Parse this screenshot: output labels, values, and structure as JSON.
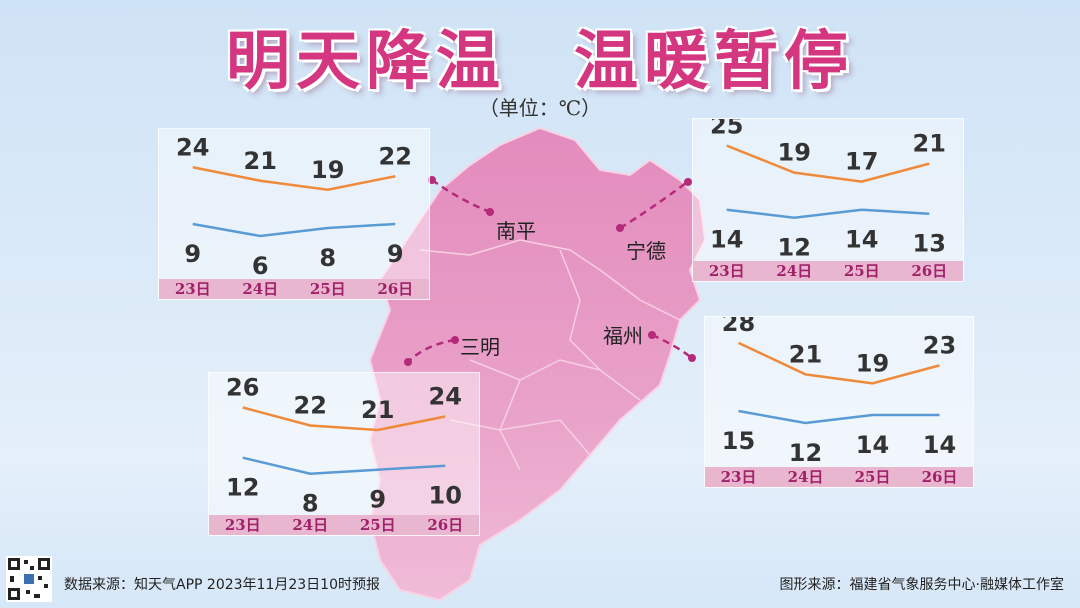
{
  "header": {
    "title_left": "明天降温",
    "title_right": "温暖暂停",
    "unit": "（单位：℃）"
  },
  "cities": [
    "南平",
    "宁德",
    "三明",
    "福州"
  ],
  "footer": {
    "left": "数据来源：知天气APP 2023年11月23日10时预报",
    "right": "图形来源：福建省气象服务中心·融媒体工作室"
  },
  "colors": {
    "high_line": "#ee8a3a",
    "low_line": "#5a9bd4",
    "title": "#d4367f",
    "map": "#e48fbe",
    "date_bar": "#e9b6cf"
  },
  "chart_data": [
    {
      "type": "line",
      "city": "南平",
      "categories": [
        "23日",
        "24日",
        "25日",
        "26日"
      ],
      "series": [
        {
          "values": [
            24,
            21,
            19,
            22
          ]
        },
        {
          "values": [
            9,
            6,
            8,
            9
          ]
        }
      ]
    },
    {
      "type": "line",
      "city": "宁德",
      "categories": [
        "23日",
        "24日",
        "25日",
        "26日"
      ],
      "series": [
        {
          "values": [
            25,
            19,
            17,
            21
          ]
        },
        {
          "values": [
            14,
            12,
            14,
            13
          ]
        }
      ]
    },
    {
      "type": "line",
      "city": "三明",
      "categories": [
        "23日",
        "24日",
        "25日",
        "26日"
      ],
      "series": [
        {
          "values": [
            26,
            22,
            21,
            24
          ]
        },
        {
          "values": [
            12,
            8,
            9,
            10
          ]
        }
      ]
    },
    {
      "type": "line",
      "city": "福州",
      "categories": [
        "23日",
        "24日",
        "25日",
        "26日"
      ],
      "series": [
        {
          "values": [
            28,
            21,
            19,
            23
          ]
        },
        {
          "values": [
            15,
            12,
            14,
            14
          ]
        }
      ]
    }
  ]
}
